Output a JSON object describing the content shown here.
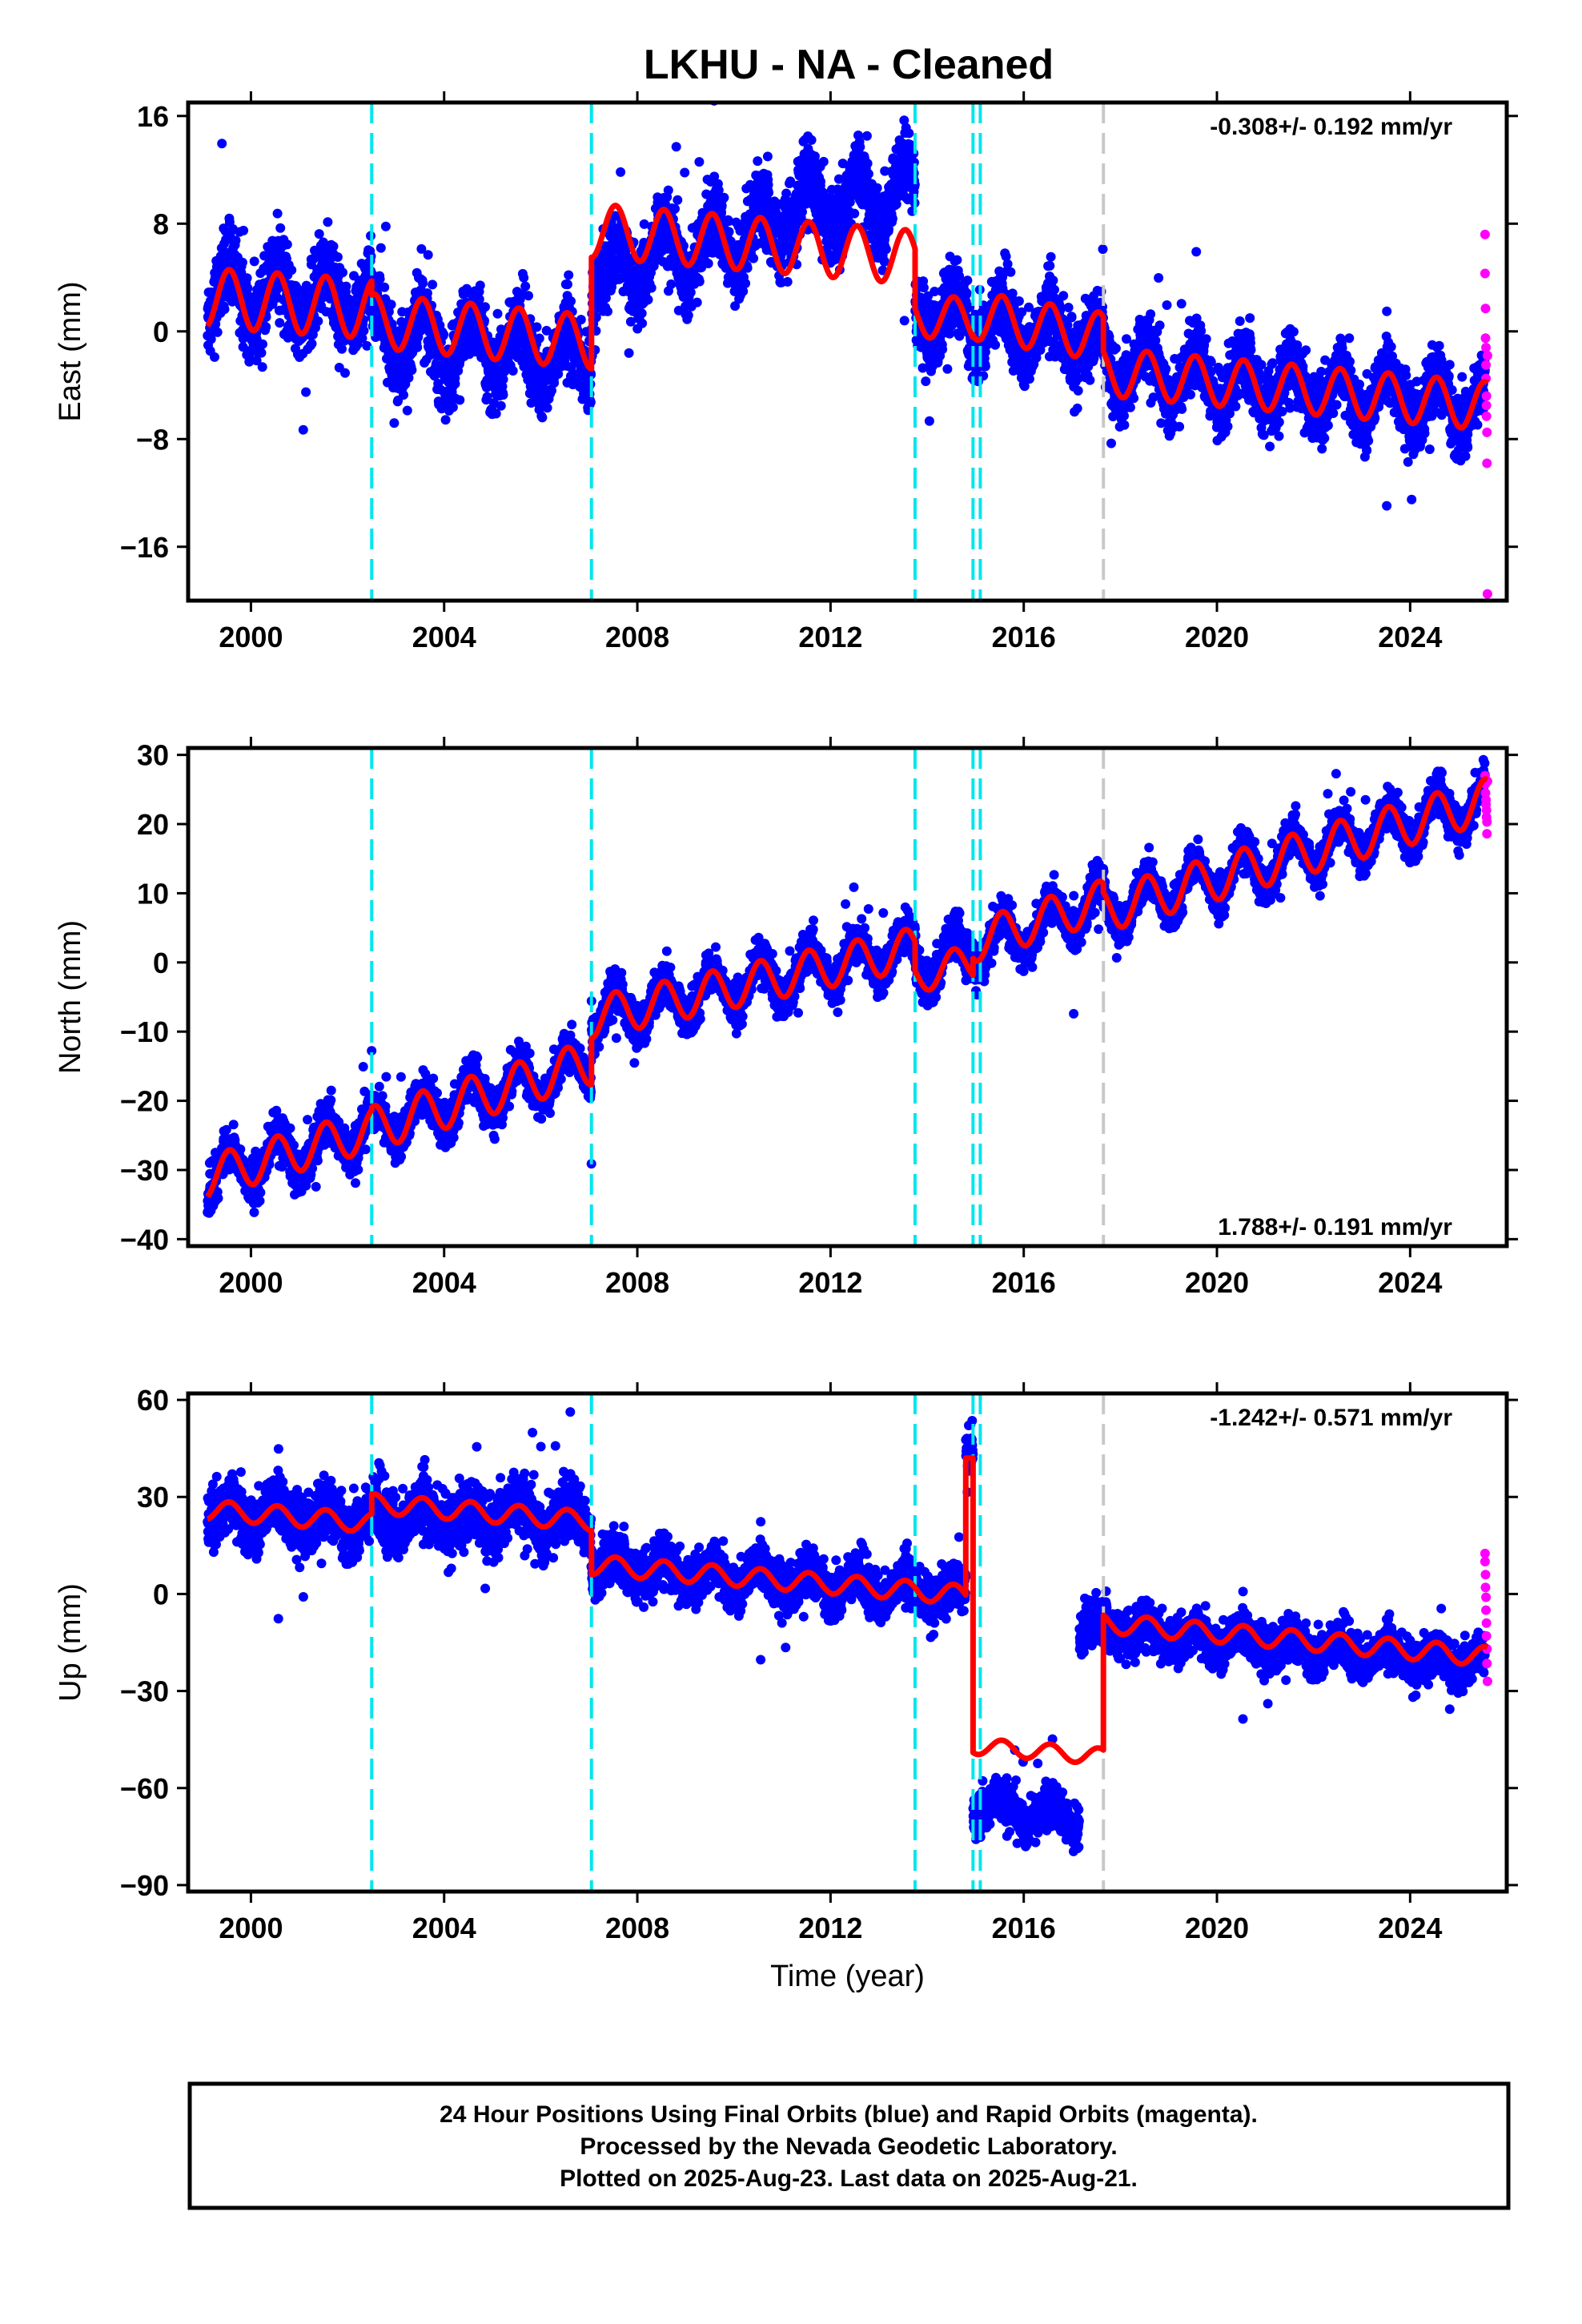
{
  "title": "LKHU  - NA - Cleaned",
  "footer": {
    "lines": [
      "24 Hour Positions Using Final Orbits (blue) and Rapid Orbits (magenta).",
      "Processed by the Nevada Geodetic Laboratory.",
      "Plotted on 2025-Aug-23. Last data on 2025-Aug-21."
    ]
  },
  "colors": {
    "final_orbits": "#0000ff",
    "rapid_orbits": "#ff00ff",
    "model": "#ff0000",
    "offset_equipment": "#00e5ee",
    "offset_earthquake": "#c8c8c8"
  },
  "chart_data": [
    {
      "type": "scatter",
      "panel": "east",
      "ylabel": "East (mm)",
      "xlim": [
        1998.7,
        2026.0
      ],
      "ylim": [
        -20,
        17
      ],
      "xticks": [
        2000,
        2004,
        2008,
        2012,
        2016,
        2020,
        2024
      ],
      "yticks": [
        16,
        8,
        0,
        -8,
        -16
      ],
      "xtick_labels": [
        "2000",
        "2004",
        "2008",
        "2012",
        "2016",
        "2020",
        "2024"
      ],
      "ytick_labels": [
        "16",
        "8",
        "0",
        "−8",
        "−16"
      ],
      "rate_label": "-0.308+/- 0.192 mm/yr",
      "rate_position": "top-right",
      "offsets_equipment": [
        2002.5,
        2007.05,
        2013.75,
        2014.95,
        2015.1
      ],
      "offsets_earthquake": [
        2017.65
      ],
      "model_segments": [
        {
          "start": 1999.1,
          "end": 2002.5,
          "base": 2.5,
          "slope": -0.25,
          "amp": 2.2
        },
        {
          "start": 2002.5,
          "end": 2007.05,
          "base": 0.8,
          "slope": -0.35,
          "amp": 2.0
        },
        {
          "start": 2007.05,
          "end": 2013.75,
          "base": 7.5,
          "slope": -0.3,
          "amp": 2.0
        },
        {
          "start": 2013.75,
          "end": 2014.95,
          "base": 1.2,
          "slope": -0.3,
          "amp": 1.6
        },
        {
          "start": 2014.95,
          "end": 2017.65,
          "base": 1.2,
          "slope": -0.6,
          "amp": 1.8
        },
        {
          "start": 2017.65,
          "end": 2025.6,
          "base": -3.0,
          "slope": -0.32,
          "amp": 1.8
        }
      ],
      "final_orbits": {
        "segments": [
          {
            "start": 1999.1,
            "end": 2002.5,
            "center": 3.0,
            "slope": -0.25,
            "amp": 2.0,
            "spread": 2.5
          },
          {
            "start": 2002.5,
            "end": 2007.05,
            "center": 0.0,
            "slope": -0.5,
            "amp": 2.0,
            "spread": 2.6
          },
          {
            "start": 2007.05,
            "end": 2011.0,
            "center": 4.0,
            "slope": 1.0,
            "amp": 2.0,
            "spread": 2.5
          },
          {
            "start": 2011.0,
            "end": 2013.75,
            "center": 9.0,
            "slope": 0.5,
            "amp": 2.2,
            "spread": 2.6
          },
          {
            "start": 2013.75,
            "end": 2017.65,
            "center": 1.5,
            "slope": -0.6,
            "amp": 1.8,
            "spread": 2.4
          },
          {
            "start": 2017.65,
            "end": 2025.55,
            "center": -2.8,
            "slope": -0.35,
            "amp": 1.8,
            "spread": 2.2
          }
        ]
      },
      "rapid_orbits": {
        "x": [
          2025.55,
          2025.55,
          2025.56,
          2025.56,
          2025.57,
          2025.57,
          2025.57,
          2025.58,
          2025.58,
          2025.58,
          2025.59,
          2025.59,
          2025.6,
          2025.6
        ],
        "y": [
          7.2,
          4.3,
          1.7,
          -0.5,
          -1.2,
          -2.5,
          -3.5,
          -4.8,
          -5.5,
          -6.3,
          -7.5,
          -9.8,
          -19.5,
          -1.8
        ]
      }
    },
    {
      "type": "scatter",
      "panel": "north",
      "ylabel": "North (mm)",
      "xlim": [
        1998.7,
        2026.0
      ],
      "ylim": [
        -41,
        31
      ],
      "xticks": [
        2000,
        2004,
        2008,
        2012,
        2016,
        2020,
        2024
      ],
      "yticks": [
        30,
        20,
        10,
        0,
        -10,
        -20,
        -30,
        -40
      ],
      "xtick_labels": [
        "2000",
        "2004",
        "2008",
        "2012",
        "2016",
        "2020",
        "2024"
      ],
      "ytick_labels": [
        "30",
        "20",
        "10",
        "0",
        "−10",
        "−20",
        "−30",
        "−40"
      ],
      "rate_label": "1.788+/- 0.191 mm/yr",
      "rate_position": "bottom-right",
      "offsets_equipment": [
        2002.5,
        2007.05,
        2013.75,
        2014.95,
        2015.1
      ],
      "offsets_earthquake": [
        2017.65
      ],
      "model_segments": [
        {
          "start": 1999.1,
          "end": 2002.5,
          "base": -31.0,
          "slope": 2.0,
          "amp": 3.0
        },
        {
          "start": 2002.5,
          "end": 2007.05,
          "base": -24.0,
          "slope": 2.1,
          "amp": 3.2
        },
        {
          "start": 2007.05,
          "end": 2013.75,
          "base": -8.0,
          "slope": 1.5,
          "amp": 3.0
        },
        {
          "start": 2013.75,
          "end": 2014.95,
          "base": -2.0,
          "slope": 1.8,
          "amp": 2.5
        },
        {
          "start": 2014.95,
          "end": 2017.65,
          "base": 3.0,
          "slope": 2.2,
          "amp": 3.0
        },
        {
          "start": 2017.65,
          "end": 2025.6,
          "base": 7.5,
          "slope": 2.0,
          "amp": 3.2
        }
      ],
      "final_orbits": {
        "segments": [
          {
            "start": 1999.1,
            "end": 2002.5,
            "center": -31.0,
            "slope": 2.0,
            "amp": 3.0,
            "spread": 2.8
          },
          {
            "start": 2002.5,
            "end": 2007.05,
            "center": -24.0,
            "slope": 2.1,
            "amp": 3.0,
            "spread": 2.6
          },
          {
            "start": 2007.05,
            "end": 2013.75,
            "center": -8.0,
            "slope": 1.5,
            "amp": 3.0,
            "spread": 2.6
          },
          {
            "start": 2013.75,
            "end": 2017.65,
            "center": -1.0,
            "slope": 2.5,
            "amp": 3.0,
            "spread": 2.6
          },
          {
            "start": 2017.65,
            "end": 2025.55,
            "center": 7.5,
            "slope": 2.0,
            "amp": 3.2,
            "spread": 2.4
          }
        ]
      },
      "rapid_orbits": {
        "x": [
          2025.55,
          2025.56,
          2025.56,
          2025.57,
          2025.57,
          2025.58,
          2025.58,
          2025.59,
          2025.59,
          2025.6
        ],
        "y": [
          27.0,
          25.8,
          24.5,
          23.5,
          22.8,
          22.0,
          21.0,
          20.3,
          18.6,
          26.2
        ]
      }
    },
    {
      "type": "scatter",
      "panel": "up",
      "ylabel": "Up (mm)",
      "xlabel": "Time (year)",
      "xlim": [
        1998.7,
        2026.0
      ],
      "ylim": [
        -92,
        62
      ],
      "xticks": [
        2000,
        2004,
        2008,
        2012,
        2016,
        2020,
        2024
      ],
      "yticks": [
        60,
        30,
        0,
        -30,
        -60,
        -90
      ],
      "xtick_labels": [
        "2000",
        "2004",
        "2008",
        "2012",
        "2016",
        "2020",
        "2024"
      ],
      "ytick_labels": [
        "60",
        "30",
        "0",
        "−30",
        "−60",
        "−90"
      ],
      "rate_label": "-1.242+/- 0.571 mm/yr",
      "rate_position": "top-right",
      "offsets_equipment": [
        2002.5,
        2007.05,
        2013.75,
        2014.95,
        2015.1
      ],
      "offsets_earthquake": [
        2017.65
      ],
      "model_segments": [
        {
          "start": 1999.1,
          "end": 2002.5,
          "base": 26.0,
          "slope": -1.2,
          "amp": 3.0
        },
        {
          "start": 2002.5,
          "end": 2007.05,
          "base": 28.0,
          "slope": -1.2,
          "amp": 3.0
        },
        {
          "start": 2007.05,
          "end": 2014.8,
          "base": 9.0,
          "slope": -1.2,
          "amp": 3.0
        },
        {
          "start": 2014.8,
          "end": 2014.95,
          "base": 42.0,
          "slope": 0.0,
          "amp": 0.0
        },
        {
          "start": 2014.95,
          "end": 2017.65,
          "base": -47.0,
          "slope": -1.2,
          "amp": 2.5
        },
        {
          "start": 2017.65,
          "end": 2025.6,
          "base": -9.0,
          "slope": -1.3,
          "amp": 3.0
        }
      ],
      "final_orbits": {
        "segments": [
          {
            "start": 1999.1,
            "end": 2002.5,
            "center": 26.0,
            "slope": -1.2,
            "amp": 4.0,
            "spread": 8.0
          },
          {
            "start": 2002.5,
            "end": 2007.05,
            "center": 24.0,
            "slope": -0.2,
            "amp": 4.0,
            "spread": 8.5
          },
          {
            "start": 2007.05,
            "end": 2014.8,
            "center": 9.0,
            "slope": -1.2,
            "amp": 4.0,
            "spread": 6.5
          },
          {
            "start": 2014.8,
            "end": 2014.95,
            "center": 46.0,
            "slope": 0.0,
            "amp": 0.0,
            "spread": 6.0
          },
          {
            "start": 2014.95,
            "end": 2017.15,
            "center": -66.0,
            "slope": -1.5,
            "amp": 3.0,
            "spread": 6.0
          },
          {
            "start": 2017.15,
            "end": 2025.55,
            "center": -10.0,
            "slope": -1.4,
            "amp": 3.0,
            "spread": 6.0
          }
        ]
      },
      "rapid_orbits": {
        "x": [
          2025.55,
          2025.55,
          2025.56,
          2025.56,
          2025.57,
          2025.57,
          2025.58,
          2025.58,
          2025.59,
          2025.59,
          2025.6
        ],
        "y": [
          12.5,
          10.0,
          6.0,
          2.0,
          -1.0,
          -5.0,
          -9.0,
          -13.0,
          -17.0,
          -21.5,
          -27.0
        ]
      }
    }
  ]
}
